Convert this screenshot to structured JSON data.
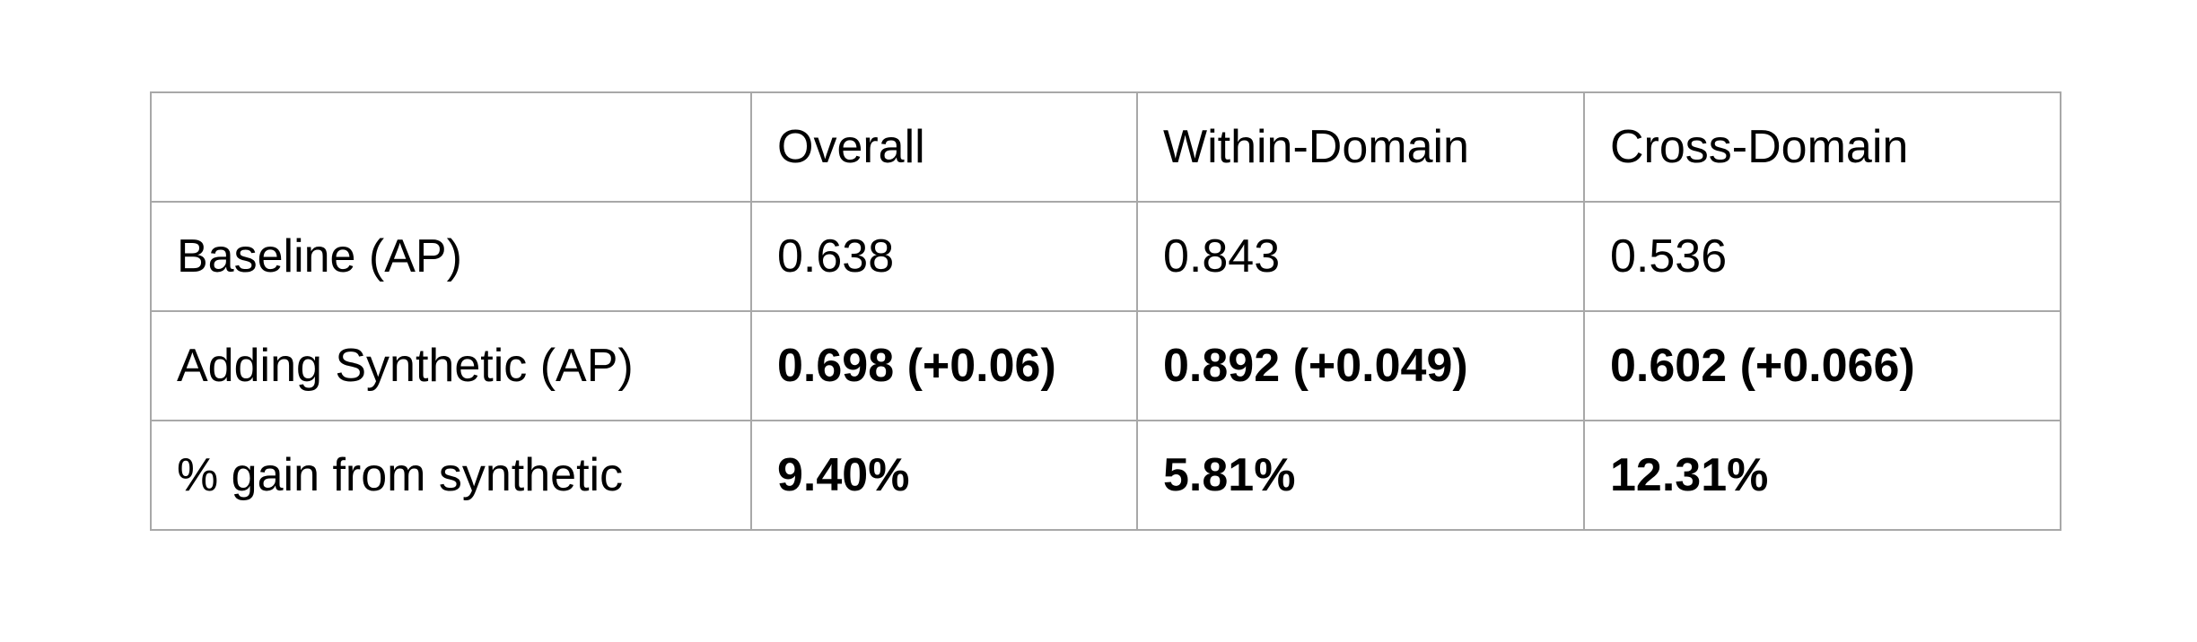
{
  "chart_data": {
    "type": "table",
    "columns": [
      "",
      "Overall",
      "Within-Domain",
      "Cross-Domain"
    ],
    "rows": [
      {
        "label": "Baseline (AP)",
        "cells": [
          "0.638",
          "0.843",
          "0.536"
        ],
        "bold": false
      },
      {
        "label": "Adding Synthetic (AP)",
        "cells": [
          "0.698 (+0.06)",
          "0.892 (+0.049)",
          "0.602 (+0.066)"
        ],
        "bold": true
      },
      {
        "label": "% gain from synthetic",
        "cells": [
          "9.40%",
          "5.81%",
          "12.31%"
        ],
        "bold": true
      }
    ],
    "values": {
      "baseline_ap": [
        0.638,
        0.843,
        0.536
      ],
      "synthetic_ap": [
        0.698,
        0.892,
        0.602
      ],
      "synthetic_delta": [
        0.06,
        0.049,
        0.066
      ],
      "pct_gain": [
        9.4,
        5.81,
        12.31
      ]
    }
  },
  "colors": {
    "grid": "#a8a8a8",
    "text": "#000000",
    "background": "#ffffff"
  }
}
